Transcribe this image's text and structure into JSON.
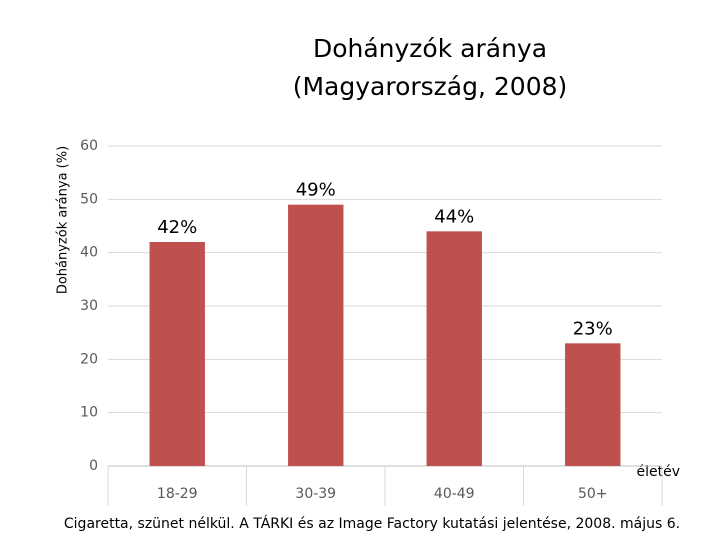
{
  "chart_data": {
    "type": "bar",
    "title_lines": [
      "Dohányzók aránya",
      "(Magyarország, 2008)"
    ],
    "y_label": "Dohányzók aránya (%)",
    "x_label": "életév",
    "footnote": "Cigaretta, szünet nélkül. A TÁRKI és az Image Factory kutatási jelentése, 2008. május 6.",
    "categories": [
      "18-29",
      "30-39",
      "40-49",
      "50+"
    ],
    "values": [
      42,
      49,
      44,
      23
    ],
    "value_labels": [
      "42%",
      "49%",
      "44%",
      "23%"
    ],
    "color": "#c0504d",
    "ylim": [
      0,
      60
    ],
    "yticks": [
      0,
      10,
      20,
      30,
      40,
      50,
      60
    ],
    "grid": true
  }
}
